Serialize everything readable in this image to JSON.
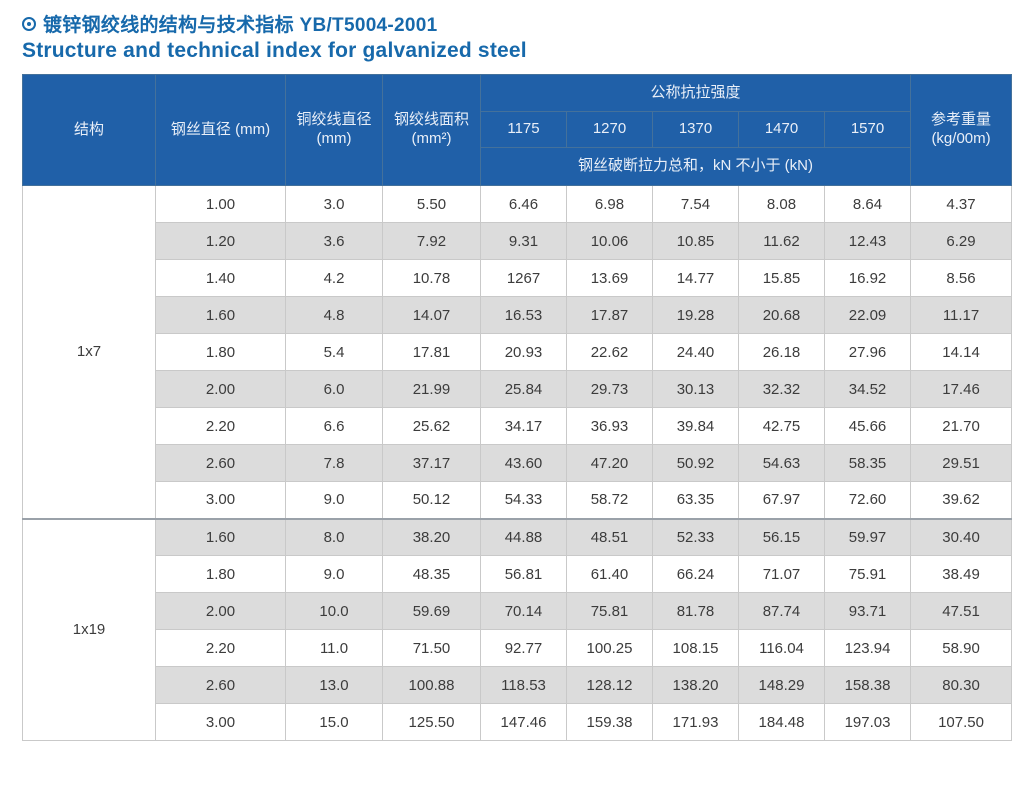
{
  "page": {
    "title_icon": "circle-dot",
    "title_zh": "镀锌钢绞线的结构与技术指标 YB/T5004-2001",
    "title_en": "Structure and technical index for galvanized steel",
    "colors": {
      "title_blue": "#1769ab",
      "header_blue": "#2060a8",
      "alt_row_gray": "#dcdcdc",
      "cell_border": "#c9c9c9"
    }
  },
  "table": {
    "header": {
      "structure": "结构",
      "wire_diameter": "钢丝直径 (mm)",
      "strand_diameter": "铜绞线直径 (mm)",
      "strand_area": "钢绞线面积 (mm²)",
      "tensile_group": "公称抗拉强度",
      "strengths": [
        "1175",
        "1270",
        "1370",
        "1470",
        "1570"
      ],
      "breaking_note": "钢丝破断拉力总和，kN 不小于 (kN)",
      "ref_weight": "参考重量 (kg/00m)"
    },
    "sections": [
      {
        "structure": "1x7",
        "rows": [
          [
            "1.00",
            "3.0",
            "5.50",
            "6.46",
            "6.98",
            "7.54",
            "8.08",
            "8.64",
            "4.37"
          ],
          [
            "1.20",
            "3.6",
            "7.92",
            "9.31",
            "10.06",
            "10.85",
            "11.62",
            "12.43",
            "6.29"
          ],
          [
            "1.40",
            "4.2",
            "10.78",
            "1267",
            "13.69",
            "14.77",
            "15.85",
            "16.92",
            "8.56"
          ],
          [
            "1.60",
            "4.8",
            "14.07",
            "16.53",
            "17.87",
            "19.28",
            "20.68",
            "22.09",
            "11.17"
          ],
          [
            "1.80",
            "5.4",
            "17.81",
            "20.93",
            "22.62",
            "24.40",
            "26.18",
            "27.96",
            "14.14"
          ],
          [
            "2.00",
            "6.0",
            "21.99",
            "25.84",
            "29.73",
            "30.13",
            "32.32",
            "34.52",
            "17.46"
          ],
          [
            "2.20",
            "6.6",
            "25.62",
            "34.17",
            "36.93",
            "39.84",
            "42.75",
            "45.66",
            "21.70"
          ],
          [
            "2.60",
            "7.8",
            "37.17",
            "43.60",
            "47.20",
            "50.92",
            "54.63",
            "58.35",
            "29.51"
          ],
          [
            "3.00",
            "9.0",
            "50.12",
            "54.33",
            "58.72",
            "63.35",
            "67.97",
            "72.60",
            "39.62"
          ]
        ]
      },
      {
        "structure": "1x19",
        "rows": [
          [
            "1.60",
            "8.0",
            "38.20",
            "44.88",
            "48.51",
            "52.33",
            "56.15",
            "59.97",
            "30.40"
          ],
          [
            "1.80",
            "9.0",
            "48.35",
            "56.81",
            "61.40",
            "66.24",
            "71.07",
            "75.91",
            "38.49"
          ],
          [
            "2.00",
            "10.0",
            "59.69",
            "70.14",
            "75.81",
            "81.78",
            "87.74",
            "93.71",
            "47.51"
          ],
          [
            "2.20",
            "11.0",
            "71.50",
            "92.77",
            "100.25",
            "108.15",
            "116.04",
            "123.94",
            "58.90"
          ],
          [
            "2.60",
            "13.0",
            "100.88",
            "118.53",
            "128.12",
            "138.20",
            "148.29",
            "158.38",
            "80.30"
          ],
          [
            "3.00",
            "15.0",
            "125.50",
            "147.46",
            "159.38",
            "171.93",
            "184.48",
            "197.03",
            "107.50"
          ]
        ]
      }
    ]
  }
}
